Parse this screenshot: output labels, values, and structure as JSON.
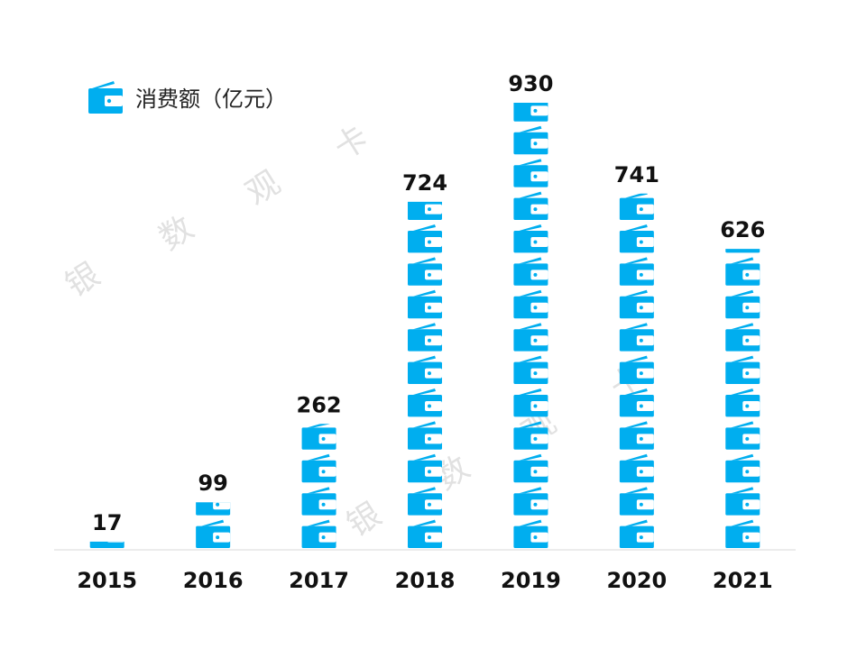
{
  "legend": {
    "label": "消费额（亿元）",
    "icon": "wallet-icon"
  },
  "watermark": [
    "银",
    "数",
    "观",
    "卡"
  ],
  "colors": {
    "bar": "#00AEEF",
    "text": "#111111",
    "axis": "#D9D9D9"
  },
  "chart_data": {
    "type": "bar",
    "title": "",
    "xlabel": "",
    "ylabel": "",
    "categories": [
      "2015",
      "2016",
      "2017",
      "2018",
      "2019",
      "2020",
      "2021"
    ],
    "series": [
      {
        "name": "消费额（亿元）",
        "values": [
          17,
          99,
          262,
          724,
          930,
          741,
          626
        ]
      }
    ],
    "data_labels": [
      "17",
      "99",
      "262",
      "724",
      "930",
      "741",
      "626"
    ],
    "ylim": [
      0,
      930
    ],
    "grid": false,
    "legend_position": "top-left"
  }
}
